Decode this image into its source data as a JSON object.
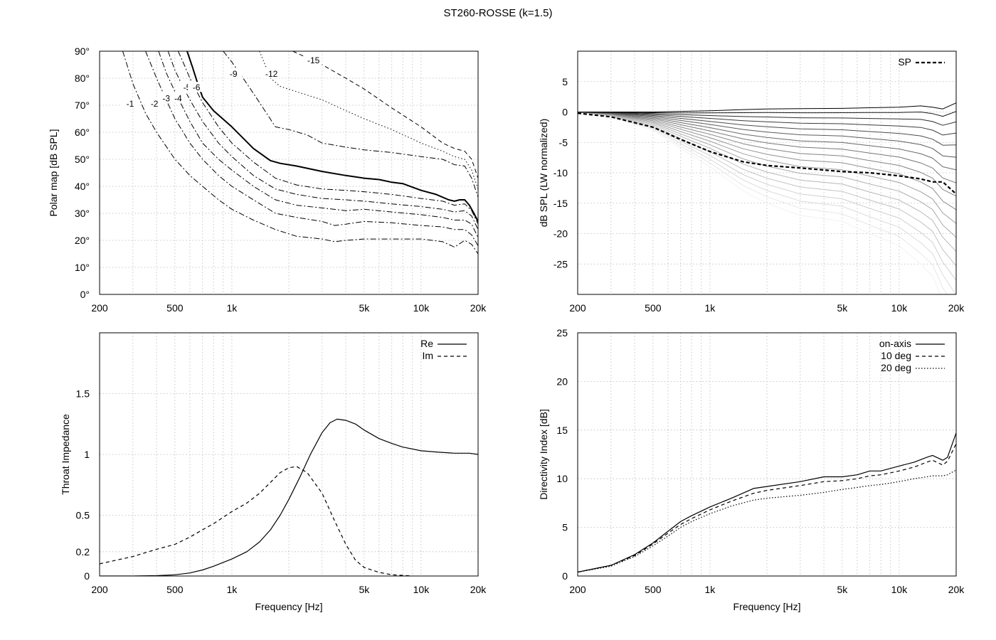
{
  "title": "ST260-ROSSE (k=1.5)",
  "x_ticks": [
    {
      "v": 200,
      "label": "200"
    },
    {
      "v": 500,
      "label": "500"
    },
    {
      "v": 1000,
      "label": "1k"
    },
    {
      "v": 5000,
      "label": "5k"
    },
    {
      "v": 10000,
      "label": "10k"
    },
    {
      "v": 20000,
      "label": "20k"
    }
  ],
  "chart_data": [
    {
      "id": "polar",
      "type": "line",
      "ylabel": "Polar map [dB SPL]",
      "xlabel": "",
      "xscale": "log",
      "xlim": [
        200,
        20000
      ],
      "ylim": [
        0,
        90
      ],
      "grid": true,
      "y_ticks": [
        {
          "v": 0,
          "label": "0°"
        },
        {
          "v": 10,
          "label": "10°"
        },
        {
          "v": 20,
          "label": "20°"
        },
        {
          "v": 30,
          "label": "30°"
        },
        {
          "v": 40,
          "label": "40°"
        },
        {
          "v": 50,
          "label": "50°"
        },
        {
          "v": 60,
          "label": "60°"
        },
        {
          "v": 70,
          "label": "70°"
        },
        {
          "v": 80,
          "label": "80°"
        },
        {
          "v": 90,
          "label": "90°"
        }
      ],
      "series": [
        {
          "label": "-1",
          "label_at": [
            290,
            70
          ],
          "dash": "8 3 2 3",
          "width": 1,
          "x": [
            265,
            300,
            350,
            400,
            500,
            600,
            700,
            850,
            1000,
            1300,
            1700,
            2200,
            3000,
            3500,
            4000,
            5000,
            7000,
            10000,
            13000,
            15000,
            17000,
            18500,
            20000
          ],
          "y": [
            90,
            78,
            67,
            60,
            50,
            44,
            40,
            35,
            31.5,
            27.5,
            24,
            21.5,
            20.5,
            19.5,
            20,
            20.5,
            20.5,
            20.5,
            19.5,
            17.5,
            20,
            18.5,
            15
          ]
        },
        {
          "label": "-2",
          "label_at": [
            390,
            70
          ],
          "dash": "8 3 2 3",
          "width": 1,
          "x": [
            350,
            400,
            450,
            500,
            600,
            700,
            850,
            1000,
            1300,
            1700,
            2200,
            3000,
            3500,
            4000,
            5000,
            7000,
            10000,
            13000,
            15000,
            17000,
            18500,
            20000
          ],
          "y": [
            90,
            80,
            72,
            65,
            56,
            50,
            44,
            40,
            35,
            30,
            28.5,
            27,
            25.5,
            26,
            27,
            26.5,
            25.5,
            25,
            24,
            24,
            22,
            18
          ]
        },
        {
          "label": "-3",
          "label_at": [
            450,
            72
          ],
          "dash": "8 3 2 3",
          "width": 1,
          "x": [
            410,
            450,
            500,
            600,
            700,
            850,
            1000,
            1300,
            1700,
            2200,
            3000,
            4000,
            5000,
            7000,
            10000,
            13000,
            15000,
            17000,
            18500,
            20000
          ],
          "y": [
            90,
            82,
            75,
            64,
            56,
            50,
            46,
            40,
            35,
            33,
            32,
            31,
            31.5,
            30.5,
            29.5,
            28.5,
            27.5,
            27.5,
            26,
            21
          ]
        },
        {
          "label": "-4",
          "label_at": [
            520,
            72
          ],
          "dash": "8 3 2 3",
          "width": 1,
          "x": [
            460,
            500,
            550,
            600,
            700,
            850,
            1000,
            1300,
            1700,
            2200,
            3000,
            4000,
            5000,
            7000,
            10000,
            13000,
            15000,
            17000,
            18500,
            20000
          ],
          "y": [
            90,
            83,
            77,
            72,
            64,
            56,
            51,
            44,
            39,
            37,
            35.5,
            35,
            34.5,
            33.5,
            32.5,
            31.5,
            30.5,
            31,
            29,
            24
          ]
        },
        {
          "label": "-5",
          "label_at": [
            580,
            76
          ],
          "dash": "8 3 2 3",
          "width": 1,
          "x": [
            520,
            560,
            600,
            700,
            850,
            1000,
            1300,
            1700,
            2200,
            3000,
            4000,
            5000,
            7000,
            10000,
            13000,
            15000,
            17000,
            18500,
            20000
          ],
          "y": [
            90,
            85,
            80,
            71,
            62,
            56,
            49,
            43,
            40.5,
            39,
            38.5,
            38,
            37,
            35.5,
            34.5,
            33,
            33.5,
            31,
            26
          ]
        },
        {
          "label": "-6",
          "label_at": [
            650,
            76
          ],
          "dash": "",
          "width": 2,
          "x": [
            580,
            620,
            660,
            700,
            800,
            1000,
            1300,
            1600,
            1800,
            2200,
            3000,
            4000,
            5000,
            6000,
            7000,
            8000,
            10000,
            12000,
            14000,
            15000,
            16000,
            17000,
            18000,
            19000,
            20000
          ],
          "y": [
            90,
            84,
            78,
            73,
            68,
            62,
            54,
            49.5,
            48.5,
            47.5,
            45.5,
            44,
            43,
            42.5,
            41.5,
            41,
            38.5,
            37,
            35,
            34.5,
            35,
            35,
            33,
            30,
            27
          ]
        },
        {
          "label": "-9",
          "label_at": [
            1020,
            81
          ],
          "dash": "8 3 2 3",
          "width": 1,
          "x": [
            900,
            1000,
            1200,
            1400,
            1700,
            2000,
            2500,
            3000,
            4000,
            5000,
            7000,
            10000,
            13000,
            15000,
            17000,
            18500,
            20000
          ],
          "y": [
            90,
            86,
            78,
            71,
            62,
            61,
            59,
            56,
            54.5,
            53.5,
            52.5,
            51,
            50,
            48,
            47.5,
            43,
            36
          ]
        },
        {
          "label": "-12",
          "label_at": [
            1620,
            81
          ],
          "dash": "1.5 3",
          "width": 1,
          "x": [
            1400,
            1600,
            1800,
            2200,
            3000,
            4000,
            5000,
            7000,
            10000,
            13000,
            15000,
            17000,
            18500,
            20000
          ],
          "y": [
            90,
            80,
            77,
            75,
            72,
            68,
            65,
            61,
            56,
            53,
            51,
            50,
            46,
            39
          ]
        },
        {
          "label": "-15",
          "label_at": [
            2700,
            86
          ],
          "dash": "6 4",
          "width": 1,
          "x": [
            2100,
            2600,
            3000,
            4000,
            5000,
            7000,
            10000,
            13000,
            15000,
            17000,
            18500,
            20000
          ],
          "y": [
            90,
            87,
            85,
            80,
            76,
            69,
            62,
            56,
            54,
            53,
            50,
            43
          ]
        }
      ]
    },
    {
      "id": "lw",
      "type": "line",
      "ylabel": "dB SPL (LW normalized)",
      "xlabel": "",
      "xscale": "log",
      "xlim": [
        200,
        20000
      ],
      "ylim": [
        -30,
        10
      ],
      "grid": true,
      "legend": "top-right",
      "legend_entries": [
        {
          "name": "SP",
          "dash": "5 3",
          "width": 2.2,
          "color": "#000000"
        }
      ],
      "y_ticks": [
        {
          "v": 5,
          "label": "5"
        },
        {
          "v": 0,
          "label": "0"
        },
        {
          "v": -5,
          "label": "-5"
        },
        {
          "v": -10,
          "label": "-10"
        },
        {
          "v": -15,
          "label": "-15"
        },
        {
          "v": -20,
          "label": "-20"
        },
        {
          "v": -25,
          "label": "-25"
        }
      ],
      "x": [
        200,
        300,
        500,
        700,
        1000,
        1500,
        2000,
        3000,
        5000,
        7000,
        10000,
        13000,
        15000,
        17000,
        20000
      ],
      "fan": {
        "count": 18,
        "color_start": "#000000",
        "color_end": "#f2f2f2",
        "first": [
          0,
          0,
          0,
          0.1,
          0.2,
          0.4,
          0.5,
          0.55,
          0.6,
          0.7,
          0.8,
          1.0,
          0.8,
          0.5,
          1.5
        ],
        "last": [
          0,
          -0.8,
          -3,
          -6,
          -9,
          -13,
          -15,
          -17,
          -18,
          -20,
          -22,
          -25,
          -27,
          -31,
          -35
        ]
      },
      "series": [
        {
          "name": "SP",
          "dash": "5 3",
          "width": 2.2,
          "color": "#000000",
          "values": [
            -0.2,
            -0.8,
            -2.5,
            -4.5,
            -6.5,
            -8.2,
            -8.8,
            -9.2,
            -9.8,
            -10,
            -10.5,
            -11,
            -11.5,
            -11.5,
            -13.5
          ]
        }
      ]
    },
    {
      "id": "impedance",
      "type": "line",
      "ylabel": "Throat Impedance",
      "xlabel": "Frequency [Hz]",
      "xscale": "log",
      "xlim": [
        200,
        20000
      ],
      "ylim": [
        0,
        2
      ],
      "grid": true,
      "legend": "top-right",
      "legend_entries": [
        {
          "name": "Re",
          "dash": "",
          "width": 1.2,
          "color": "#000000"
        },
        {
          "name": "Im",
          "dash": "5 4",
          "width": 1.2,
          "color": "#000000"
        }
      ],
      "y_ticks": [
        {
          "v": 0,
          "label": "0"
        },
        {
          "v": 0.2,
          "label": "0.2"
        },
        {
          "v": 0.5,
          "label": "0.5"
        },
        {
          "v": 1,
          "label": "1"
        },
        {
          "v": 1.5,
          "label": "1.5"
        }
      ],
      "series": [
        {
          "name": "Re",
          "dash": "",
          "width": 1.2,
          "color": "#000000",
          "x": [
            200,
            300,
            400,
            500,
            600,
            700,
            800,
            1000,
            1200,
            1400,
            1600,
            1800,
            2000,
            2300,
            2600,
            3000,
            3300,
            3600,
            4000,
            4500,
            5000,
            6000,
            7000,
            8000,
            10000,
            12000,
            15000,
            18000,
            20000
          ],
          "values": [
            0,
            0,
            0.003,
            0.01,
            0.025,
            0.05,
            0.08,
            0.14,
            0.2,
            0.28,
            0.38,
            0.5,
            0.63,
            0.82,
            1.0,
            1.18,
            1.26,
            1.29,
            1.28,
            1.25,
            1.2,
            1.13,
            1.09,
            1.06,
            1.03,
            1.02,
            1.01,
            1.01,
            1.0
          ]
        },
        {
          "name": "Im",
          "dash": "5 4",
          "width": 1.2,
          "color": "#000000",
          "x": [
            200,
            300,
            400,
            500,
            600,
            700,
            800,
            1000,
            1200,
            1400,
            1600,
            1800,
            2000,
            2200,
            2500,
            3000,
            3500,
            4000,
            4500,
            5000,
            6000,
            7000,
            8000,
            9000
          ],
          "values": [
            0.1,
            0.16,
            0.22,
            0.26,
            0.32,
            0.38,
            0.43,
            0.53,
            0.6,
            0.68,
            0.77,
            0.85,
            0.89,
            0.9,
            0.85,
            0.68,
            0.45,
            0.26,
            0.13,
            0.07,
            0.03,
            0.01,
            0.005,
            0
          ]
        }
      ]
    },
    {
      "id": "di",
      "type": "line",
      "ylabel": "Directivity Index [dB]",
      "xlabel": "Frequency [Hz]",
      "xscale": "log",
      "xlim": [
        200,
        20000
      ],
      "ylim": [
        0,
        25
      ],
      "grid": true,
      "legend": "top-right",
      "legend_entries": [
        {
          "name": "on-axis",
          "dash": "",
          "width": 1.2,
          "color": "#000000"
        },
        {
          "name": "10 deg",
          "dash": "5 4",
          "width": 1.2,
          "color": "#000000"
        },
        {
          "name": "20 deg",
          "dash": "1.5 2.5",
          "width": 1.2,
          "color": "#000000"
        }
      ],
      "y_ticks": [
        {
          "v": 0,
          "label": "0"
        },
        {
          "v": 5,
          "label": "5"
        },
        {
          "v": 10,
          "label": "10"
        },
        {
          "v": 15,
          "label": "15"
        },
        {
          "v": 20,
          "label": "20"
        },
        {
          "v": 25,
          "label": "25"
        }
      ],
      "series": [
        {
          "name": "on-axis",
          "dash": "",
          "width": 1.2,
          "color": "#000000",
          "x": [
            200,
            300,
            400,
            500,
            600,
            700,
            800,
            1000,
            1300,
            1700,
            2000,
            3000,
            4000,
            5000,
            6000,
            7000,
            8000,
            10000,
            12000,
            14000,
            15000,
            17000,
            18000,
            20000
          ],
          "values": [
            0.4,
            1.1,
            2.2,
            3.4,
            4.6,
            5.6,
            6.2,
            7.1,
            8.0,
            9.0,
            9.2,
            9.7,
            10.2,
            10.2,
            10.4,
            10.8,
            10.8,
            11.3,
            11.7,
            12.2,
            12.4,
            11.9,
            12.2,
            14.7
          ]
        },
        {
          "name": "10 deg",
          "dash": "5 4",
          "width": 1.2,
          "color": "#000000",
          "x": [
            200,
            300,
            400,
            500,
            600,
            700,
            800,
            1000,
            1300,
            1700,
            2000,
            3000,
            4000,
            5000,
            6000,
            7000,
            8000,
            10000,
            12000,
            14000,
            15000,
            17000,
            18000,
            20000
          ],
          "values": [
            0.4,
            1.1,
            2.1,
            3.3,
            4.4,
            5.3,
            5.9,
            6.8,
            7.7,
            8.5,
            8.8,
            9.3,
            9.7,
            9.8,
            10.0,
            10.3,
            10.4,
            10.8,
            11.2,
            11.7,
            11.9,
            11.4,
            11.8,
            13.6
          ]
        },
        {
          "name": "20 deg",
          "dash": "1.5 2.5",
          "width": 1.2,
          "color": "#000000",
          "x": [
            200,
            300,
            400,
            500,
            600,
            700,
            800,
            1000,
            1300,
            1700,
            2000,
            3000,
            4000,
            5000,
            6000,
            7000,
            8000,
            10000,
            12000,
            14000,
            15000,
            17000,
            18000,
            20000
          ],
          "values": [
            0.4,
            1.0,
            2.0,
            3.1,
            4.1,
            5.0,
            5.6,
            6.4,
            7.2,
            7.8,
            8.0,
            8.3,
            8.6,
            8.9,
            9.1,
            9.3,
            9.4,
            9.7,
            10.0,
            10.2,
            10.3,
            10.3,
            10.4,
            10.9
          ]
        }
      ]
    }
  ]
}
